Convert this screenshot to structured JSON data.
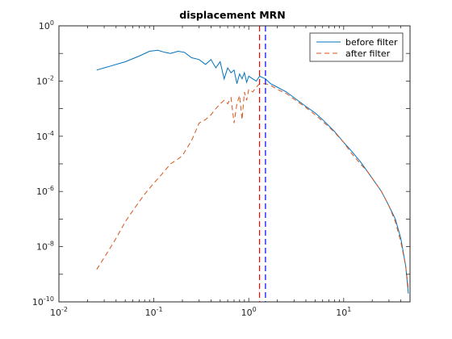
{
  "chart_data": {
    "type": "line",
    "title": "displacement MRN",
    "xlabel": "",
    "ylabel": "",
    "xscale": "log",
    "yscale": "log",
    "xlim": [
      0.01,
      50
    ],
    "ylim": [
      1e-10,
      1
    ],
    "x_ticks": [
      {
        "value": 0.01,
        "base": "10",
        "exp": "-2"
      },
      {
        "value": 0.1,
        "base": "10",
        "exp": "-1"
      },
      {
        "value": 1,
        "base": "10",
        "exp": "0"
      },
      {
        "value": 10,
        "base": "10",
        "exp": "1"
      }
    ],
    "y_ticks": [
      {
        "value": 1e-10,
        "base": "10",
        "exp": "-10"
      },
      {
        "value": 1e-08,
        "base": "10",
        "exp": "-8"
      },
      {
        "value": 1e-06,
        "base": "10",
        "exp": "-6"
      },
      {
        "value": 0.0001,
        "base": "10",
        "exp": "-4"
      },
      {
        "value": 0.01,
        "base": "10",
        "exp": "-2"
      },
      {
        "value": 1,
        "base": "10",
        "exp": "0"
      }
    ],
    "grid": false,
    "legend_position": "top-right",
    "series": [
      {
        "name": "before filter",
        "color": "#0072BD",
        "style": "solid",
        "x": [
          0.025,
          0.035,
          0.05,
          0.07,
          0.09,
          0.11,
          0.13,
          0.15,
          0.18,
          0.21,
          0.25,
          0.3,
          0.35,
          0.4,
          0.45,
          0.5,
          0.55,
          0.6,
          0.65,
          0.7,
          0.75,
          0.8,
          0.85,
          0.9,
          0.95,
          1.0,
          1.1,
          1.2,
          1.3,
          1.5,
          1.7,
          2,
          2.5,
          3,
          4,
          5,
          6,
          8,
          10,
          12,
          15,
          18,
          20,
          25,
          30,
          35,
          40,
          45,
          48
        ],
        "y": [
          0.025,
          0.035,
          0.05,
          0.08,
          0.12,
          0.13,
          0.11,
          0.1,
          0.12,
          0.11,
          0.07,
          0.06,
          0.04,
          0.06,
          0.03,
          0.05,
          0.012,
          0.03,
          0.02,
          0.025,
          0.008,
          0.018,
          0.012,
          0.02,
          0.009,
          0.015,
          0.012,
          0.01,
          0.015,
          0.012,
          0.008,
          0.006,
          0.004,
          0.0025,
          0.0012,
          0.0007,
          0.0004,
          0.00015,
          6e-05,
          3e-05,
          1.2e-05,
          5e-06,
          3e-06,
          1e-06,
          3e-07,
          1e-07,
          2e-08,
          2e-09,
          2e-10
        ]
      },
      {
        "name": "after filter",
        "color": "#D95319",
        "style": "dashed",
        "x": [
          0.025,
          0.03,
          0.04,
          0.05,
          0.06,
          0.08,
          0.1,
          0.12,
          0.15,
          0.18,
          0.2,
          0.25,
          0.3,
          0.35,
          0.4,
          0.45,
          0.5,
          0.55,
          0.6,
          0.65,
          0.7,
          0.75,
          0.8,
          0.85,
          0.9,
          0.95,
          1.0,
          1.1,
          1.2,
          1.3,
          1.5,
          1.7,
          2,
          2.5,
          3,
          4,
          5,
          6,
          8,
          10,
          12,
          15,
          18,
          20,
          25,
          30,
          35,
          40,
          45,
          48
        ],
        "y": [
          1.5e-09,
          4e-09,
          2e-08,
          8e-08,
          2e-07,
          8e-07,
          2e-06,
          4e-06,
          1e-05,
          1.5e-05,
          2e-05,
          7e-05,
          0.0003,
          0.0004,
          0.0006,
          0.001,
          0.0015,
          0.002,
          0.0015,
          0.0025,
          0.0003,
          0.0015,
          0.003,
          0.0004,
          0.004,
          0.002,
          0.005,
          0.004,
          0.006,
          0.008,
          0.008,
          0.007,
          0.005,
          0.0035,
          0.0022,
          0.0011,
          0.0006,
          0.00035,
          0.00014,
          6e-05,
          2.5e-05,
          1e-05,
          5e-06,
          3e-06,
          1e-06,
          3e-07,
          8e-08,
          1.5e-08,
          2e-09,
          3e-10
        ]
      }
    ],
    "vertical_lines": [
      {
        "x": 1.3,
        "color": "#FF0000",
        "style": "dashed"
      },
      {
        "x": 1.5,
        "color": "#0000FF",
        "style": "dashed"
      }
    ]
  }
}
